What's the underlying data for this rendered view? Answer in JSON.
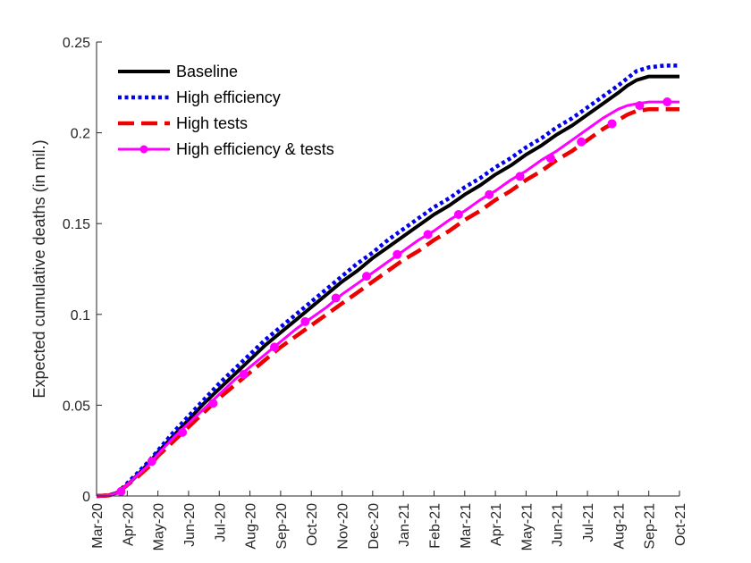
{
  "chart_data": {
    "type": "line",
    "title": "",
    "xlabel": "",
    "ylabel": "Expected cumulative deaths (in mil.)",
    "ylim": [
      0,
      0.25
    ],
    "xlim": [
      0,
      19
    ],
    "categories": [
      "Mar-20",
      "Apr-20",
      "May-20",
      "Jun-20",
      "Jul-20",
      "Aug-20",
      "Sep-20",
      "Oct-20",
      "Nov-20",
      "Dec-20",
      "Jan-21",
      "Feb-21",
      "Mar-21",
      "Apr-21",
      "May-21",
      "Jun-21",
      "Jul-21",
      "Aug-21",
      "Sep-21",
      "Oct-21"
    ],
    "yticks": [
      {
        "value": 0,
        "label": "0"
      },
      {
        "value": 0.05,
        "label": "0.05"
      },
      {
        "value": 0.1,
        "label": "0.1"
      },
      {
        "value": 0.15,
        "label": "0.15"
      },
      {
        "value": 0.2,
        "label": "0.2"
      },
      {
        "value": 0.25,
        "label": "0.25"
      }
    ],
    "legend_position": "top-left",
    "x": [
      0,
      0.4,
      0.7,
      1.0,
      1.3,
      1.7,
      2.0,
      2.5,
      3.0,
      3.5,
      4.0,
      4.5,
      5.0,
      5.5,
      6.0,
      6.5,
      7.0,
      7.5,
      8.0,
      8.5,
      9.0,
      9.5,
      10.0,
      10.5,
      11.0,
      11.5,
      12.0,
      12.5,
      13.0,
      13.5,
      14.0,
      14.5,
      15.0,
      15.5,
      16.0,
      16.5,
      17.0,
      17.3,
      17.6,
      18.0,
      18.5,
      19.0
    ],
    "series": [
      {
        "name": "Baseline",
        "color": "#000000",
        "style": "solid",
        "values": [
          0,
          0.0003,
          0.002,
          0.006,
          0.011,
          0.018,
          0.024,
          0.033,
          0.042,
          0.051,
          0.059,
          0.067,
          0.075,
          0.083,
          0.09,
          0.097,
          0.104,
          0.111,
          0.118,
          0.124,
          0.131,
          0.137,
          0.143,
          0.149,
          0.155,
          0.16,
          0.166,
          0.171,
          0.177,
          0.182,
          0.188,
          0.193,
          0.199,
          0.204,
          0.21,
          0.216,
          0.222,
          0.226,
          0.229,
          0.231,
          0.231,
          0.231
        ]
      },
      {
        "name": "High efficiency",
        "color": "#0000ee",
        "style": "dotted",
        "values": [
          0,
          0.0003,
          0.002,
          0.007,
          0.012,
          0.019,
          0.025,
          0.035,
          0.044,
          0.053,
          0.062,
          0.07,
          0.078,
          0.086,
          0.093,
          0.1,
          0.107,
          0.114,
          0.121,
          0.128,
          0.134,
          0.141,
          0.147,
          0.153,
          0.159,
          0.164,
          0.17,
          0.175,
          0.181,
          0.186,
          0.192,
          0.197,
          0.203,
          0.208,
          0.214,
          0.22,
          0.226,
          0.23,
          0.234,
          0.236,
          0.237,
          0.237
        ]
      },
      {
        "name": "High tests",
        "color": "#ee0000",
        "style": "dashed",
        "values": [
          0,
          0.0003,
          0.002,
          0.006,
          0.01,
          0.016,
          0.022,
          0.03,
          0.038,
          0.046,
          0.054,
          0.061,
          0.068,
          0.075,
          0.082,
          0.088,
          0.094,
          0.1,
          0.106,
          0.112,
          0.118,
          0.124,
          0.13,
          0.135,
          0.141,
          0.146,
          0.152,
          0.157,
          0.163,
          0.168,
          0.174,
          0.179,
          0.185,
          0.19,
          0.196,
          0.202,
          0.207,
          0.21,
          0.212,
          0.213,
          0.213,
          0.213
        ]
      },
      {
        "name": "High efficiency & tests",
        "color": "#ff00ff",
        "style": "solid-markers",
        "values": [
          0,
          0.0003,
          0.002,
          0.006,
          0.011,
          0.017,
          0.023,
          0.032,
          0.04,
          0.048,
          0.056,
          0.064,
          0.071,
          0.078,
          0.085,
          0.092,
          0.098,
          0.104,
          0.111,
          0.117,
          0.123,
          0.129,
          0.135,
          0.141,
          0.146,
          0.152,
          0.157,
          0.163,
          0.168,
          0.174,
          0.179,
          0.185,
          0.19,
          0.196,
          0.202,
          0.208,
          0.213,
          0.215,
          0.216,
          0.217,
          0.217,
          0.217
        ],
        "markers": [
          [
            0.8,
            0.0025
          ],
          [
            1.8,
            0.019
          ],
          [
            2.8,
            0.035
          ],
          [
            3.8,
            0.051
          ],
          [
            4.8,
            0.067
          ],
          [
            5.8,
            0.082
          ],
          [
            6.8,
            0.096
          ],
          [
            7.8,
            0.109
          ],
          [
            8.8,
            0.121
          ],
          [
            9.8,
            0.133
          ],
          [
            10.8,
            0.144
          ],
          [
            11.8,
            0.155
          ],
          [
            12.8,
            0.166
          ],
          [
            13.8,
            0.176
          ],
          [
            14.8,
            0.186
          ],
          [
            15.8,
            0.195
          ],
          [
            16.8,
            0.205
          ],
          [
            17.7,
            0.215
          ],
          [
            18.6,
            0.217
          ]
        ]
      }
    ]
  }
}
